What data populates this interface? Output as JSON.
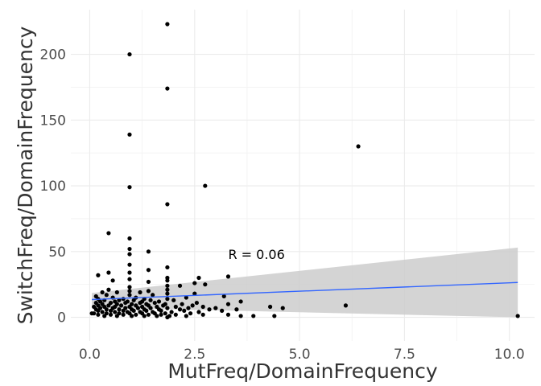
{
  "chart_data": {
    "type": "scatter",
    "title": "",
    "xlabel": "MutFreq/DomainFrequency",
    "ylabel": "SwitchFreq/DomainFrequency",
    "xlim": [
      -0.45,
      10.6
    ],
    "ylim": [
      -18,
      234
    ],
    "x_ticks": [
      0,
      2.5,
      5,
      7.5,
      10
    ],
    "x_tick_labels": [
      "0.0",
      "2.5",
      "5.0",
      "7.5",
      "10.0"
    ],
    "y_ticks": [
      0,
      50,
      100,
      150,
      200
    ],
    "y_tick_labels": [
      "0",
      "50",
      "100",
      "150",
      "200"
    ],
    "grid": true,
    "annotation": {
      "text": "R = 0.06",
      "x": 3.3,
      "y": 48
    },
    "points": [
      [
        1.85,
        223
      ],
      [
        0.95,
        200
      ],
      [
        1.85,
        174
      ],
      [
        0.95,
        139
      ],
      [
        6.4,
        130
      ],
      [
        2.75,
        100
      ],
      [
        0.95,
        99
      ],
      [
        1.85,
        86
      ],
      [
        0.45,
        64
      ],
      [
        0.95,
        60
      ],
      [
        0.95,
        52
      ],
      [
        1.4,
        50
      ],
      [
        0.95,
        48
      ],
      [
        0.95,
        40
      ],
      [
        1.85,
        38
      ],
      [
        1.4,
        36
      ],
      [
        0.45,
        34
      ],
      [
        0.95,
        34
      ],
      [
        0.2,
        32
      ],
      [
        3.3,
        31
      ],
      [
        1.85,
        30
      ],
      [
        2.6,
        30
      ],
      [
        0.95,
        29
      ],
      [
        0.55,
        28
      ],
      [
        1.85,
        28
      ],
      [
        1.4,
        27
      ],
      [
        2.5,
        26
      ],
      [
        2.75,
        25
      ],
      [
        1.85,
        24
      ],
      [
        2.15,
        24
      ],
      [
        0.95,
        23
      ],
      [
        0.45,
        21
      ],
      [
        1.85,
        21
      ],
      [
        1.4,
        20
      ],
      [
        0.95,
        20
      ],
      [
        0.3,
        19
      ],
      [
        0.65,
        19
      ],
      [
        1.2,
        19
      ],
      [
        1.85,
        18
      ],
      [
        2.5,
        18
      ],
      [
        0.4,
        17
      ],
      [
        0.95,
        17
      ],
      [
        1.5,
        17
      ],
      [
        3.2,
        16
      ],
      [
        0.15,
        16
      ],
      [
        0.55,
        15
      ],
      [
        1.1,
        15
      ],
      [
        2.3,
        15
      ],
      [
        0.2,
        14
      ],
      [
        0.8,
        14
      ],
      [
        1.3,
        14
      ],
      [
        1.85,
        14
      ],
      [
        0.35,
        13
      ],
      [
        0.7,
        13
      ],
      [
        1.05,
        13
      ],
      [
        1.45,
        13
      ],
      [
        2.0,
        13
      ],
      [
        0.25,
        12
      ],
      [
        0.6,
        12
      ],
      [
        0.9,
        12
      ],
      [
        1.25,
        12
      ],
      [
        1.65,
        12
      ],
      [
        3.6,
        12
      ],
      [
        0.15,
        11
      ],
      [
        0.5,
        11
      ],
      [
        0.85,
        11
      ],
      [
        1.2,
        11
      ],
      [
        1.55,
        11
      ],
      [
        2.55,
        11
      ],
      [
        0.3,
        10
      ],
      [
        0.65,
        10
      ],
      [
        1.0,
        10
      ],
      [
        1.35,
        10
      ],
      [
        1.8,
        10
      ],
      [
        2.2,
        10
      ],
      [
        3.3,
        10
      ],
      [
        0.2,
        9
      ],
      [
        0.45,
        9
      ],
      [
        0.75,
        9
      ],
      [
        1.1,
        9
      ],
      [
        1.4,
        9
      ],
      [
        1.75,
        9
      ],
      [
        2.45,
        9
      ],
      [
        6.1,
        9
      ],
      [
        0.1,
        8
      ],
      [
        0.35,
        8
      ],
      [
        0.6,
        8
      ],
      [
        0.95,
        8
      ],
      [
        1.25,
        8
      ],
      [
        1.6,
        8
      ],
      [
        2.05,
        8
      ],
      [
        2.7,
        8
      ],
      [
        4.3,
        8
      ],
      [
        0.25,
        7
      ],
      [
        0.55,
        7
      ],
      [
        0.85,
        7
      ],
      [
        1.15,
        7
      ],
      [
        1.45,
        7
      ],
      [
        1.85,
        7
      ],
      [
        2.35,
        7
      ],
      [
        3.0,
        7
      ],
      [
        4.6,
        7
      ],
      [
        0.15,
        6
      ],
      [
        0.4,
        6
      ],
      [
        0.7,
        6
      ],
      [
        1.0,
        6
      ],
      [
        1.3,
        6
      ],
      [
        1.65,
        6
      ],
      [
        2.15,
        6
      ],
      [
        2.85,
        6
      ],
      [
        3.5,
        6
      ],
      [
        0.2,
        5
      ],
      [
        0.5,
        5
      ],
      [
        0.8,
        5
      ],
      [
        1.05,
        5
      ],
      [
        1.35,
        5
      ],
      [
        1.7,
        5
      ],
      [
        2.25,
        5
      ],
      [
        3.15,
        5
      ],
      [
        0.3,
        4
      ],
      [
        0.6,
        4
      ],
      [
        0.9,
        4
      ],
      [
        1.2,
        4
      ],
      [
        1.5,
        4
      ],
      [
        1.95,
        4
      ],
      [
        2.6,
        4
      ],
      [
        0.1,
        3
      ],
      [
        0.4,
        3
      ],
      [
        0.7,
        3
      ],
      [
        0.95,
        3
      ],
      [
        1.25,
        3
      ],
      [
        1.55,
        3
      ],
      [
        1.8,
        3
      ],
      [
        2.4,
        3
      ],
      [
        0.05,
        3
      ],
      [
        0.2,
        2
      ],
      [
        0.5,
        2
      ],
      [
        0.8,
        2
      ],
      [
        1.1,
        2
      ],
      [
        1.4,
        2
      ],
      [
        1.7,
        2
      ],
      [
        2.05,
        2
      ],
      [
        2.7,
        2
      ],
      [
        3.3,
        2
      ],
      [
        0.35,
        1
      ],
      [
        0.65,
        1
      ],
      [
        1.0,
        1
      ],
      [
        1.3,
        1
      ],
      [
        1.6,
        1
      ],
      [
        1.9,
        1
      ],
      [
        2.3,
        1
      ],
      [
        3.6,
        1
      ],
      [
        3.9,
        1
      ],
      [
        4.4,
        1
      ],
      [
        1.85,
        0
      ],
      [
        10.2,
        1
      ]
    ],
    "regression": {
      "x": [
        0.05,
        10.2
      ],
      "y": [
        13.5,
        26.5
      ],
      "ci_lower": [
        7.5,
        0
      ],
      "ci_upper": [
        18.5,
        53
      ],
      "line_color": "#3366FF",
      "band_color": "#CCCCCC"
    },
    "point_color": "#000000"
  }
}
